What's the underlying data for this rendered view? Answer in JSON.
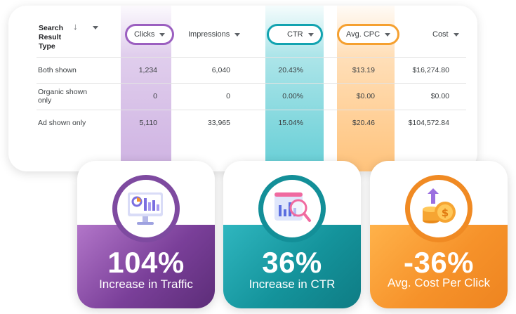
{
  "table": {
    "first_header": "Search Result Type",
    "columns": [
      "Clicks",
      "Impressions",
      "CTR",
      "Avg. CPC",
      "Cost"
    ],
    "rows": [
      {
        "type": "Both shown",
        "clicks": "1,234",
        "impressions": "6,040",
        "ctr": "20.43%",
        "cpc": "$13.19",
        "cost": "$16,274.80"
      },
      {
        "type": "Organic shown only",
        "clicks": "0",
        "impressions": "0",
        "ctr": "0.00%",
        "cpc": "$0.00",
        "cost": "$0.00"
      },
      {
        "type": "Ad shown only",
        "clicks": "5,110",
        "impressions": "33,965",
        "ctr": "15.04%",
        "cpc": "$20.46",
        "cost": "$104,572.84"
      }
    ],
    "highlight_colors": {
      "clicks": "#9b5fc0",
      "ctr": "#12a3b0",
      "cpc": "#f5a030"
    }
  },
  "stats": [
    {
      "value": "104%",
      "label": "Increase in Traffic",
      "icon": "analytics-monitor-icon",
      "color": "#7a3f99"
    },
    {
      "value": "36%",
      "label": "Increase in CTR",
      "icon": "chart-magnifier-icon",
      "color": "#14939b"
    },
    {
      "value": "-36%",
      "label": "Avg. Cost Per Click",
      "icon": "coins-dollar-icon",
      "color": "#f6922a"
    }
  ]
}
